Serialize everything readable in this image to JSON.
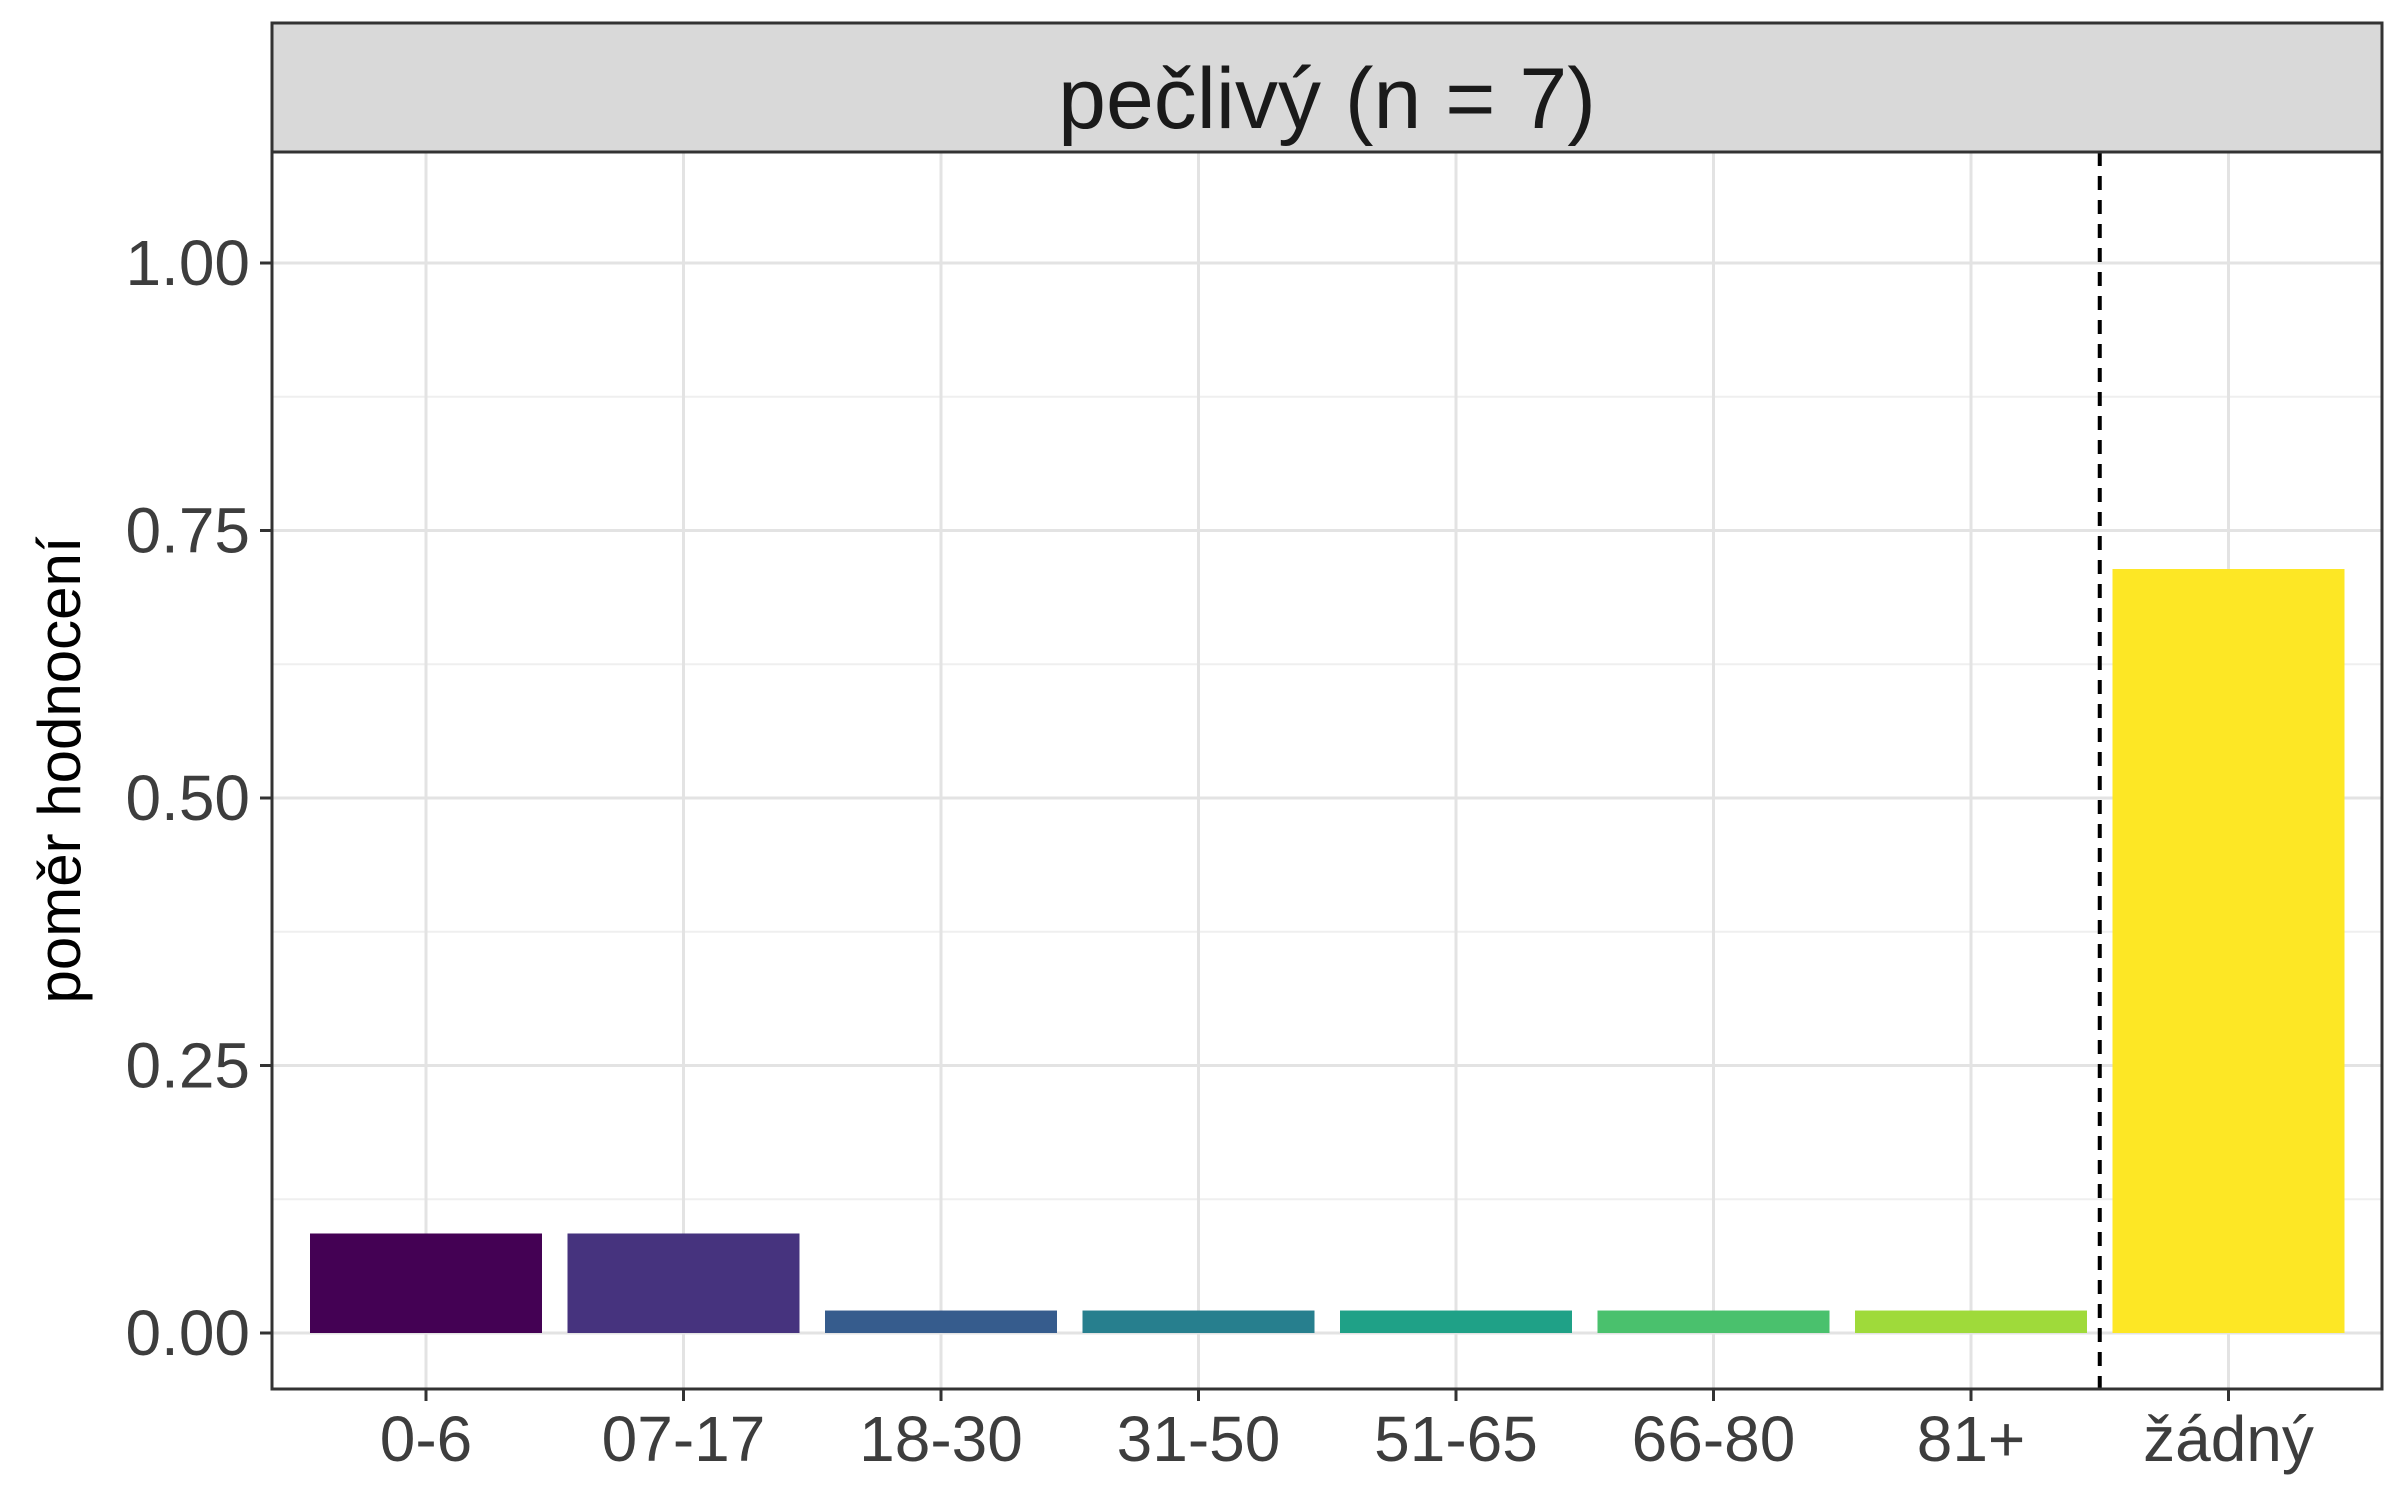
{
  "chart_data": {
    "type": "bar",
    "title": "",
    "facet_label": "pečlivý (n = 7)",
    "xlabel": "",
    "ylabel": "poměr hodnocení",
    "categories": [
      "0-6",
      "07-17",
      "18-30",
      "31-50",
      "51-65",
      "66-80",
      "81+",
      "žádný"
    ],
    "values": [
      0.093,
      0.093,
      0.021,
      0.021,
      0.021,
      0.021,
      0.021,
      0.714
    ],
    "colors": [
      "#440154",
      "#46337E",
      "#365C8D",
      "#277F8E",
      "#1FA187",
      "#4AC16D",
      "#9FDA3A",
      "#FDE725"
    ],
    "ylim": [
      -0.05,
      1.1
    ],
    "yticks": [
      0.0,
      0.25,
      0.5,
      0.75,
      1.0
    ],
    "ytick_labels": [
      "0.00",
      "0.25",
      "0.50",
      "0.75",
      "1.00"
    ],
    "separator_after_category": "81+",
    "separator_style": "dashed",
    "grid": true,
    "legend": "none"
  }
}
